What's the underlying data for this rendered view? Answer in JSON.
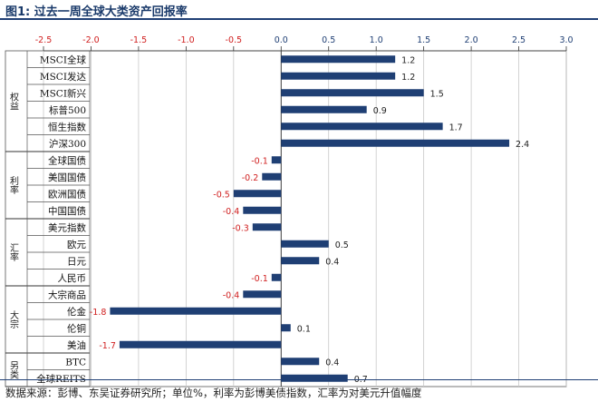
{
  "header": {
    "title": "图1:  过去一周全球大类资产回报率"
  },
  "footer": {
    "source": "数据来源：彭博、东吴证券研究所；单位%，利率为彭博美债指数，汇率为对美元升值幅度"
  },
  "colors": {
    "bar": "#1f3f74",
    "negative_label": "#d02020",
    "positive_label": "#222222",
    "axis_tick": "#d02020",
    "axis_tick_positive": "#1f3f74",
    "grid": "#c8c8c8"
  },
  "chart_data": {
    "type": "bar",
    "orientation": "horizontal",
    "title": "",
    "xlim": [
      -2.5,
      3.0
    ],
    "x_ticks": [
      -2.5,
      -2.0,
      -1.5,
      -1.0,
      -0.5,
      0.0,
      0.5,
      1.0,
      1.5,
      2.0,
      2.5,
      3.0
    ],
    "x_tick_labels": [
      "-2.5",
      "-2.0",
      "-1.5",
      "-1.0",
      "-0.5",
      "0.0",
      "0.5",
      "1.0",
      "1.5",
      "2.0",
      "2.5",
      "3.0"
    ],
    "axis_position": "top",
    "grid": true,
    "groups": [
      {
        "label": "权益",
        "categories": [
          "MSCI全球",
          "MSCI发达",
          "MSCI新兴",
          "标普500",
          "恒生指数",
          "沪深300"
        ]
      },
      {
        "label": "利率",
        "categories": [
          "全球国债",
          "美国国债",
          "欧洲国债",
          "中国国债"
        ]
      },
      {
        "label": "汇率",
        "categories": [
          "美元指数",
          "欧元",
          "日元",
          "人民币"
        ]
      },
      {
        "label": "大宗",
        "categories": [
          "大宗商品",
          "伦金",
          "伦铜",
          "美油"
        ]
      },
      {
        "label": "另类",
        "categories": [
          "BTC",
          "全球REITS"
        ]
      }
    ],
    "categories": [
      "MSCI全球",
      "MSCI发达",
      "MSCI新兴",
      "标普500",
      "恒生指数",
      "沪深300",
      "全球国债",
      "美国国债",
      "欧洲国债",
      "中国国债",
      "美元指数",
      "欧元",
      "日元",
      "人民币",
      "大宗商品",
      "伦金",
      "伦铜",
      "美油",
      "BTC",
      "全球REITS"
    ],
    "values": [
      1.2,
      1.2,
      1.5,
      0.9,
      1.7,
      2.4,
      -0.1,
      -0.2,
      -0.5,
      -0.4,
      -0.3,
      0.5,
      0.4,
      -0.1,
      -0.4,
      -1.8,
      0.1,
      -1.7,
      0.4,
      0.7
    ],
    "value_labels": [
      "1.2",
      "1.2",
      "1.5",
      "0.9",
      "1.7",
      "2.4",
      "-0.1",
      "-0.2",
      "-0.5",
      "-0.4",
      "-0.3",
      "0.5",
      "0.4",
      "-0.1",
      "-0.4",
      "-1.8",
      "0.1",
      "-1.7",
      "0.4",
      "0.7"
    ]
  }
}
